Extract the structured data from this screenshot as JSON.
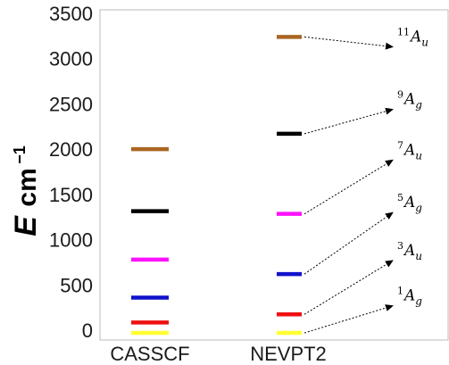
{
  "chart_data": {
    "type": "energy-level",
    "ylabel_main": "E",
    "ylabel_unit": "cm",
    "ylabel_exp": "−1",
    "ylim": [
      -50,
      3500
    ],
    "yticks": [
      "0",
      "500",
      "1000",
      "1500",
      "2000",
      "2500",
      "3000",
      "3500"
    ],
    "ytick_values": [
      0,
      500,
      1000,
      1500,
      2000,
      2500,
      3000,
      3500
    ],
    "categories": [
      "CASSCF",
      "NEVPT2"
    ],
    "series": [
      {
        "state": "1Ag",
        "sup": "1",
        "sym": "A",
        "sub": "g",
        "color": "#ffff33",
        "values": [
          -30,
          -30
        ]
      },
      {
        "state": "3Au",
        "sup": "3",
        "sym": "A",
        "sub": "u",
        "color": "#ee1111",
        "values": [
          85,
          175
        ]
      },
      {
        "state": "5Ag",
        "sup": "5",
        "sym": "A",
        "sub": "g",
        "color": "#1111cc",
        "values": [
          360,
          620
        ]
      },
      {
        "state": "7Au",
        "sup": "7",
        "sym": "A",
        "sub": "u",
        "color": "#ff11ff",
        "values": [
          780,
          1285
        ]
      },
      {
        "state": "9Ag",
        "sup": "9",
        "sym": "A",
        "sub": "g",
        "color": "#000000",
        "values": [
          1315,
          2170
        ]
      },
      {
        "state": "11Au",
        "sup": "11",
        "sym": "A",
        "sub": "u",
        "color": "#aa6622",
        "values": [
          2000,
          3240
        ]
      }
    ],
    "annotation_y": [
      270,
      770,
      1300,
      1880,
      2440,
      3130
    ]
  }
}
